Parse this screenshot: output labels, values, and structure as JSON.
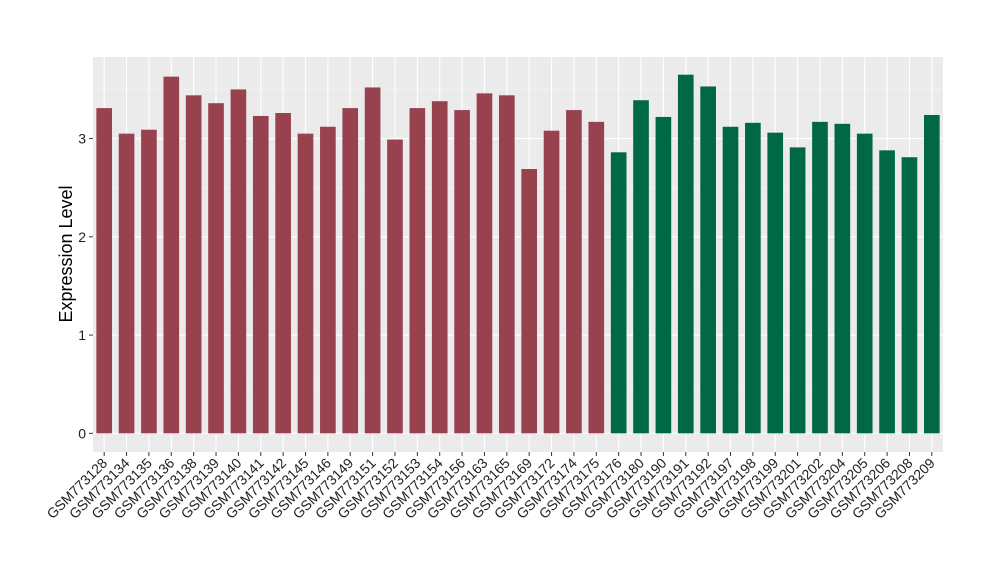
{
  "chart_data": {
    "type": "bar",
    "title": "",
    "xlabel": "",
    "ylabel": "Expression Level",
    "ylim": [
      -0.19,
      3.83
    ],
    "yticks": [
      0,
      1,
      2,
      3
    ],
    "grid": true,
    "legend": "none",
    "categories": [
      "GSM773128",
      "GSM773134",
      "GSM773135",
      "GSM773136",
      "GSM773138",
      "GSM773139",
      "GSM773140",
      "GSM773141",
      "GSM773142",
      "GSM773145",
      "GSM773146",
      "GSM773149",
      "GSM773151",
      "GSM773152",
      "GSM773153",
      "GSM773154",
      "GSM773156",
      "GSM773163",
      "GSM773165",
      "GSM773169",
      "GSM773172",
      "GSM773174",
      "GSM773175",
      "GSM773176",
      "GSM773180",
      "GSM773190",
      "GSM773191",
      "GSM773192",
      "GSM773197",
      "GSM773198",
      "GSM773199",
      "GSM773201",
      "GSM773202",
      "GSM773204",
      "GSM773205",
      "GSM773206",
      "GSM773208",
      "GSM773209"
    ],
    "values": [
      3.31,
      3.05,
      3.09,
      3.63,
      3.44,
      3.36,
      3.5,
      3.23,
      3.26,
      3.05,
      3.12,
      3.31,
      3.52,
      2.99,
      3.31,
      3.38,
      3.29,
      3.46,
      3.44,
      2.69,
      3.08,
      3.29,
      3.17,
      2.86,
      3.39,
      3.22,
      3.65,
      3.53,
      3.12,
      3.16,
      3.06,
      2.91,
      3.17,
      3.15,
      3.05,
      2.88,
      2.81,
      3.24
    ],
    "groups": [
      0,
      0,
      0,
      0,
      0,
      0,
      0,
      0,
      0,
      0,
      0,
      0,
      0,
      0,
      0,
      0,
      0,
      0,
      0,
      0,
      0,
      0,
      0,
      1,
      1,
      1,
      1,
      1,
      1,
      1,
      1,
      1,
      1,
      1,
      1,
      1,
      1,
      1
    ],
    "group_colors": [
      "#99424F",
      "#006845"
    ]
  }
}
